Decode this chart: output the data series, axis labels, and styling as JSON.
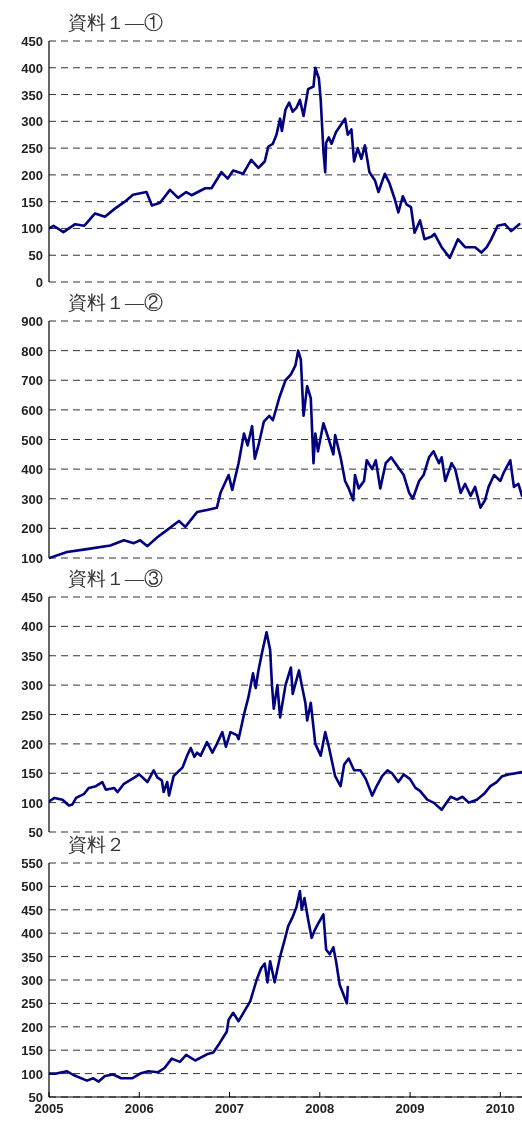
{
  "chart_data": [
    {
      "type": "line",
      "title": "資料１―①",
      "xlim": [
        2005,
        2010.24
      ],
      "ylim": [
        0,
        450
      ],
      "yticks": [
        0,
        50,
        100,
        150,
        200,
        250,
        300,
        350,
        400,
        450
      ],
      "grid": "y",
      "tick_labels": "y",
      "line_style": "solid",
      "series": [
        {
          "color": "#000080",
          "x": [
            2005.0,
            2005.05,
            2005.16,
            2005.29,
            2005.39,
            2005.51,
            2005.62,
            2005.73,
            2005.84,
            2005.93,
            2006.08,
            2006.14,
            2006.23,
            2006.34,
            2006.43,
            2006.52,
            2006.58,
            2006.73,
            2006.8,
            2006.91,
            2006.98,
            2007.04,
            2007.15,
            2007.24,
            2007.32,
            2007.39,
            2007.43,
            2007.48,
            2007.52,
            2007.56,
            2007.58,
            2007.62,
            2007.66,
            2007.7,
            2007.74,
            2007.78,
            2007.82,
            2007.87,
            2007.93,
            2007.95,
            2007.99,
            2008.01,
            2008.04,
            2008.06,
            2008.07,
            2008.1,
            2008.13,
            2008.18,
            2008.28,
            2008.31,
            2008.35,
            2008.38,
            2008.42,
            2008.46,
            2008.5,
            2008.55,
            2008.61,
            2008.65,
            2008.72,
            2008.77,
            2008.83,
            2008.87,
            2008.92,
            2008.96,
            2009.01,
            2009.05,
            2009.11,
            2009.16,
            2009.24,
            2009.27,
            2009.35,
            2009.44,
            2009.53,
            2009.61,
            2009.72,
            2009.79,
            2009.85,
            2009.9,
            2009.97,
            2010.05,
            2010.12,
            2010.21
          ],
          "values": [
            100,
            105,
            93,
            108,
            105,
            128,
            122,
            137,
            150,
            163,
            168,
            143,
            148,
            172,
            157,
            168,
            162,
            175,
            175,
            205,
            193,
            208,
            202,
            228,
            213,
            225,
            253,
            258,
            275,
            305,
            282,
            322,
            335,
            318,
            325,
            340,
            310,
            360,
            365,
            400,
            380,
            340,
            245,
            205,
            260,
            270,
            258,
            280,
            305,
            275,
            285,
            225,
            250,
            230,
            255,
            205,
            190,
            168,
            202,
            185,
            155,
            130,
            160,
            145,
            140,
            92,
            115,
            80,
            85,
            90,
            65,
            45,
            80,
            65,
            65,
            55,
            65,
            80,
            105,
            108,
            95,
            108
          ]
        }
      ]
    },
    {
      "type": "line",
      "title": "資料１―②",
      "xlim": [
        2005,
        2010.24
      ],
      "ylim": [
        100,
        900
      ],
      "yticks": [
        100,
        200,
        300,
        400,
        500,
        600,
        700,
        800,
        900
      ],
      "grid": "y",
      "tick_labels": "y",
      "line_style": "solid",
      "series": [
        {
          "color": "#000080",
          "x": [
            2005.0,
            2005.2,
            2005.42,
            2005.68,
            2005.83,
            2005.94,
            2006.01,
            2006.09,
            2006.2,
            2006.31,
            2006.44,
            2006.51,
            2006.64,
            2006.75,
            2006.86,
            2006.9,
            2006.99,
            2007.03,
            2007.1,
            2007.16,
            2007.2,
            2007.25,
            2007.28,
            2007.32,
            2007.38,
            2007.44,
            2007.48,
            2007.55,
            2007.62,
            2007.68,
            2007.73,
            2007.76,
            2007.79,
            2007.82,
            2007.86,
            2007.9,
            2007.93,
            2007.95,
            2007.98,
            2008.04,
            2008.1,
            2008.15,
            2008.17,
            2008.23,
            2008.28,
            2008.32,
            2008.37,
            2008.39,
            2008.43,
            2008.49,
            2008.52,
            2008.58,
            2008.62,
            2008.67,
            2008.73,
            2008.79,
            2008.86,
            2008.93,
            2008.99,
            2009.03,
            2009.1,
            2009.15,
            2009.21,
            2009.26,
            2009.32,
            2009.35,
            2009.39,
            2009.46,
            2009.5,
            2009.56,
            2009.61,
            2009.67,
            2009.72,
            2009.78,
            2009.83,
            2009.87,
            2009.93,
            2010.0,
            2010.04,
            2010.11,
            2010.15,
            2010.2,
            2010.24
          ],
          "values": [
            100,
            120,
            130,
            142,
            160,
            150,
            160,
            140,
            170,
            195,
            225,
            205,
            255,
            262,
            270,
            320,
            380,
            330,
            420,
            520,
            480,
            545,
            435,
            480,
            560,
            580,
            565,
            640,
            700,
            720,
            750,
            800,
            770,
            580,
            680,
            640,
            420,
            520,
            460,
            555,
            500,
            450,
            515,
            440,
            360,
            335,
            295,
            380,
            335,
            360,
            430,
            400,
            430,
            335,
            420,
            440,
            410,
            380,
            320,
            300,
            360,
            380,
            440,
            460,
            420,
            440,
            360,
            420,
            400,
            320,
            350,
            310,
            340,
            270,
            295,
            340,
            380,
            360,
            390,
            430,
            340,
            350,
            310
          ]
        }
      ]
    },
    {
      "type": "line",
      "title": "資料１―③",
      "xlim": [
        2005,
        2010.24
      ],
      "ylim": [
        50,
        450
      ],
      "yticks": [
        50,
        100,
        150,
        200,
        250,
        300,
        350,
        400,
        450
      ],
      "grid": "y",
      "tick_labels": "y",
      "line_style": "solid",
      "series": [
        {
          "color": "#000080",
          "x": [
            2005.0,
            2005.06,
            2005.15,
            2005.22,
            2005.26,
            2005.3,
            2005.39,
            2005.44,
            2005.52,
            2005.59,
            2005.63,
            2005.72,
            2005.76,
            2005.83,
            2005.94,
            2006.0,
            2006.09,
            2006.16,
            2006.2,
            2006.25,
            2006.27,
            2006.31,
            2006.33,
            2006.38,
            2006.48,
            2006.53,
            2006.57,
            2006.61,
            2006.64,
            2006.68,
            2006.75,
            2006.81,
            2006.86,
            2006.92,
            2006.96,
            2007.01,
            2007.08,
            2007.1,
            2007.16,
            2007.21,
            2007.26,
            2007.29,
            2007.32,
            2007.36,
            2007.41,
            2007.45,
            2007.47,
            2007.49,
            2007.53,
            2007.56,
            2007.62,
            2007.68,
            2007.7,
            2007.77,
            2007.8,
            2007.84,
            2007.86,
            2007.9,
            2007.95,
            2008.01,
            2008.06,
            2008.1,
            2008.17,
            2008.23,
            2008.27,
            2008.32,
            2008.38,
            2008.45,
            2008.51,
            2008.58,
            2008.62,
            2008.69,
            2008.75,
            2008.8,
            2008.87,
            2008.93,
            2009.0,
            2009.06,
            2009.11,
            2009.19,
            2009.26,
            2009.35,
            2009.45,
            2009.52,
            2009.58,
            2009.65,
            2009.74,
            2009.82,
            2009.89,
            2009.96,
            2010.02,
            2010.09,
            2010.24
          ],
          "values": [
            102,
            108,
            105,
            95,
            97,
            108,
            115,
            125,
            128,
            135,
            122,
            125,
            118,
            132,
            142,
            148,
            135,
            155,
            143,
            138,
            118,
            135,
            112,
            145,
            160,
            180,
            193,
            178,
            185,
            180,
            203,
            185,
            200,
            220,
            195,
            220,
            215,
            208,
            250,
            280,
            320,
            295,
            325,
            355,
            390,
            360,
            300,
            260,
            300,
            245,
            300,
            330,
            285,
            325,
            300,
            270,
            240,
            270,
            200,
            180,
            220,
            195,
            145,
            128,
            165,
            175,
            155,
            155,
            140,
            112,
            125,
            145,
            155,
            150,
            135,
            148,
            140,
            125,
            120,
            105,
            100,
            88,
            110,
            105,
            110,
            100,
            105,
            115,
            128,
            135,
            145,
            148,
            152
          ]
        }
      ]
    },
    {
      "type": "line",
      "title": "資料２",
      "xlim": [
        2005,
        2010.24
      ],
      "ylim": [
        50,
        550
      ],
      "yticks": [
        50,
        100,
        150,
        200,
        250,
        300,
        350,
        400,
        450,
        500,
        550
      ],
      "xticks": [
        2005,
        2006,
        2007,
        2008,
        2009,
        2010
      ],
      "grid": "y",
      "line_style": "solid",
      "series": [
        {
          "color": "#000080",
          "x": [
            2005.0,
            2005.08,
            2005.2,
            2005.27,
            2005.42,
            2005.49,
            2005.55,
            2005.62,
            2005.71,
            2005.8,
            2005.92,
            2006.01,
            2006.1,
            2006.21,
            2006.28,
            2006.36,
            2006.45,
            2006.52,
            2006.62,
            2006.76,
            2006.82,
            2006.89,
            2006.97,
            2006.99,
            2007.04,
            2007.1,
            2007.17,
            2007.23,
            2007.3,
            2007.35,
            2007.39,
            2007.42,
            2007.45,
            2007.5,
            2007.56,
            2007.61,
            2007.65,
            2007.7,
            2007.74,
            2007.78,
            2007.8,
            2007.83,
            2007.87,
            2007.91,
            2007.94,
            2007.98,
            2008.04,
            2008.07,
            2008.11,
            2008.15,
            2008.18,
            2008.22,
            2008.26,
            2008.3,
            2008.31
          ],
          "values": [
            100,
            100,
            105,
            97,
            85,
            90,
            83,
            95,
            98,
            90,
            90,
            100,
            105,
            103,
            112,
            132,
            125,
            140,
            128,
            142,
            145,
            165,
            190,
            215,
            230,
            212,
            235,
            255,
            300,
            325,
            335,
            295,
            340,
            295,
            350,
            385,
            415,
            435,
            455,
            490,
            450,
            475,
            430,
            390,
            405,
            420,
            440,
            365,
            355,
            370,
            340,
            290,
            270,
            250,
            285
          ]
        }
      ]
    }
  ]
}
